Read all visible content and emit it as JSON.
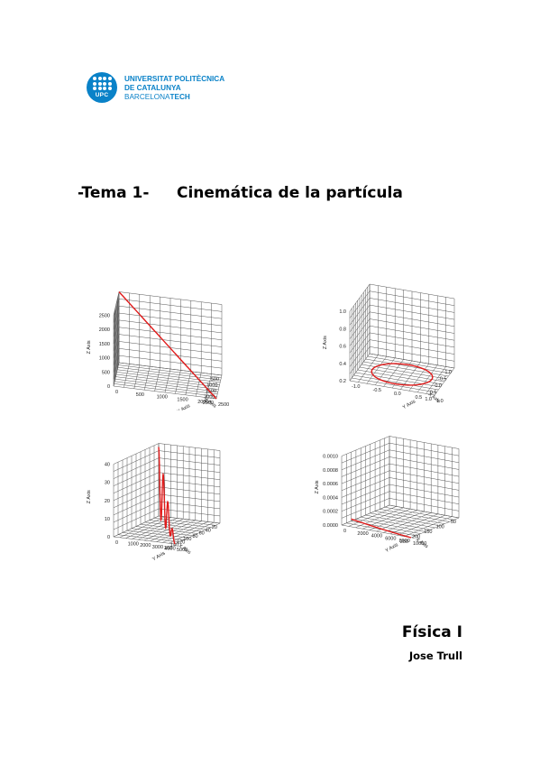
{
  "logo": {
    "mark_text": "UPC",
    "line1": "UNIVERSITAT POLITÈCNICA",
    "line2": "DE CATALUNYA",
    "line3_part1": "BARCELONA",
    "line3_part2": "TECH",
    "brand_color": "#0a82c8"
  },
  "title": {
    "part1": "-Tema 1-",
    "part2": "Cinemática de la partícula"
  },
  "footer": {
    "subject": "Física I",
    "author": "Jose Trull"
  },
  "chart_data": [
    {
      "type": "line",
      "curve": "straight line",
      "z_ticks": [
        "0",
        "500",
        "1000",
        "1500",
        "2000",
        "2500"
      ],
      "x_ticks": [
        "500",
        "1000",
        "1500",
        "2000",
        "2500"
      ],
      "y_ticks": [
        "0",
        "500",
        "1000",
        "1500",
        "2000",
        "2500"
      ],
      "z_label": "Z Axis",
      "x_label": "X Axis",
      "y_label": "Y Axis",
      "line_color": "#e01b1b"
    },
    {
      "type": "line",
      "curve": "ellipse in the plane z = 0",
      "z_ticks": [
        "0.2",
        "0.4",
        "0.6",
        "0.8",
        "1.0"
      ],
      "x_ticks": [
        "-1.0",
        "-0.5",
        "0.0",
        "0.5",
        "1.0"
      ],
      "y_ticks": [
        "-1.0",
        "-0.5",
        "0.0",
        "0.5",
        "1.0"
      ],
      "z_label": "Z Axis",
      "x_label": "X Axis",
      "y_label": "Y Axis",
      "line_color": "#e01b1b"
    },
    {
      "type": "line",
      "curve": "growing oscillation",
      "z_ticks": [
        "0",
        "10",
        "20",
        "30",
        "40"
      ],
      "x_ticks": [
        "20",
        "40",
        "60",
        "80",
        "100",
        "120",
        "140",
        "160"
      ],
      "y_ticks": [
        "0",
        "1000",
        "2000",
        "3000",
        "4000",
        "5000"
      ],
      "z_label": "Z Axis",
      "x_label": "X Axis",
      "y_label": "Y Axis",
      "line_color": "#e01b1b"
    },
    {
      "type": "line",
      "curve": "curve near the floor",
      "z_ticks": [
        "0.0000",
        "0.0002",
        "0.0004",
        "0.0006",
        "0.0008",
        "0.0010"
      ],
      "x_ticks": [
        "50",
        "100",
        "150",
        "200",
        "250"
      ],
      "y_ticks": [
        "0",
        "2000",
        "4000",
        "6000",
        "8000",
        "10000"
      ],
      "z_label": "Z Axis",
      "x_label": "X Axis",
      "y_label": "Y Axis",
      "line_color": "#e01b1b"
    }
  ]
}
